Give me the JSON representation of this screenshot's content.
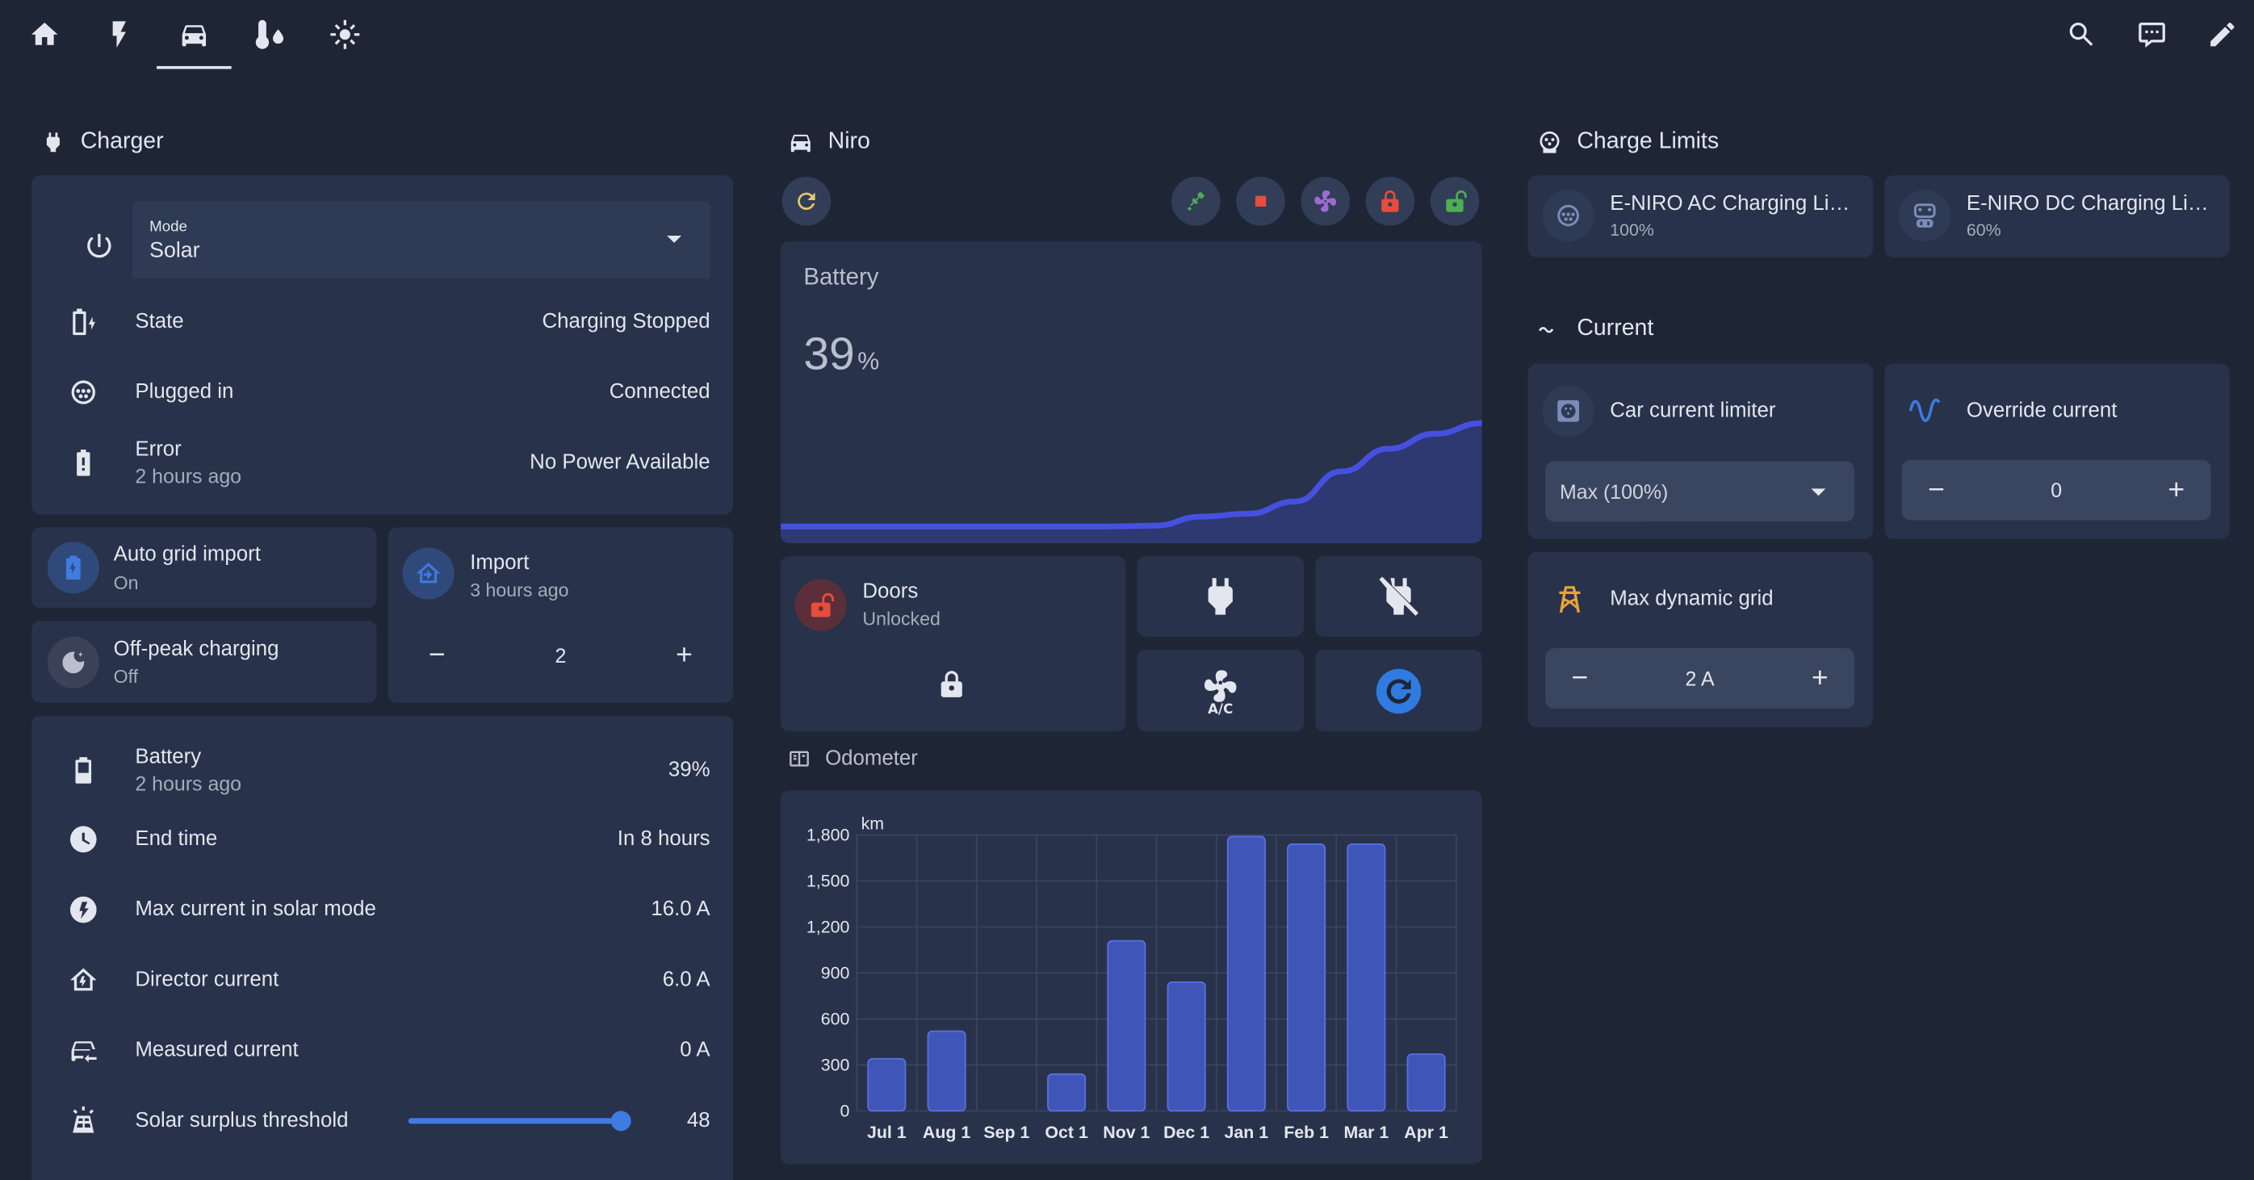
{
  "colors": {
    "bg": "#1e2636",
    "card": "#28324a",
    "accent": "#3f7be0",
    "bar": "#3f55b8",
    "battery_line": "#4650e0"
  },
  "nav": {
    "tabs": [
      {
        "name": "home-icon"
      },
      {
        "name": "lightning-icon"
      },
      {
        "name": "car-icon",
        "active": true
      },
      {
        "name": "thermometer-water-icon"
      },
      {
        "name": "sun-thermometer-icon"
      }
    ],
    "actions": [
      {
        "name": "search-icon"
      },
      {
        "name": "chat-icon"
      },
      {
        "name": "pencil-icon"
      }
    ]
  },
  "charger": {
    "title": "Charger",
    "mode": {
      "caption": "Mode",
      "value": "Solar"
    },
    "rows": [
      {
        "label": "State",
        "value": "Charging Stopped"
      },
      {
        "label": "Plugged in",
        "value": "Connected"
      },
      {
        "label": "Error",
        "sub": "2 hours ago",
        "value": "No Power Available"
      }
    ],
    "tiles": {
      "auto_grid": {
        "title": "Auto grid import",
        "state": "On"
      },
      "offpeak": {
        "title": "Off-peak charging",
        "state": "Off"
      },
      "import": {
        "title": "Import",
        "sub": "3 hours ago",
        "value": "2",
        "minus": "−",
        "plus": "+"
      }
    },
    "details": [
      {
        "label": "Battery",
        "sub": "2 hours ago",
        "value": "39%"
      },
      {
        "label": "End time",
        "value": "In 8 hours"
      },
      {
        "label": "Max current in solar mode",
        "value": "16.0 A"
      },
      {
        "label": "Director current",
        "value": "6.0 A"
      },
      {
        "label": "Measured current",
        "value": "0 A"
      },
      {
        "label": "Solar surplus threshold",
        "value": "48",
        "slider_fraction": 0.985
      }
    ]
  },
  "niro": {
    "title": "Niro",
    "battery": {
      "title": "Battery",
      "value": "39",
      "unit": "%",
      "trend": [
        0.035,
        0.035,
        0.035,
        0.035,
        0.035,
        0.035,
        0.035,
        0.035,
        0.04,
        0.1,
        0.12,
        0.2,
        0.4,
        0.55,
        0.65,
        0.72
      ]
    },
    "doors": {
      "title": "Doors",
      "state": "Unlocked"
    },
    "odometer": {
      "title": "Odometer",
      "chart_data": {
        "type": "bar",
        "ylabel": "km",
        "categories": [
          "Jul 1",
          "Aug 1",
          "Sep 1",
          "Oct 1",
          "Nov 1",
          "Dec 1",
          "Jan 1",
          "Feb 1",
          "Mar 1",
          "Apr 1"
        ],
        "values": [
          340,
          520,
          0,
          240,
          1110,
          840,
          1790,
          1740,
          1740,
          370
        ],
        "yticks": [
          "0",
          "300",
          "600",
          "900",
          "1,200",
          "1,500",
          "1,800"
        ],
        "ylim": [
          0,
          1800
        ]
      }
    }
  },
  "charge_limits": {
    "title": "Charge Limits",
    "items": [
      {
        "title": "E-NIRO AC Charging Li…",
        "value": "100%"
      },
      {
        "title": "E-NIRO DC Charging Li…",
        "value": "60%"
      }
    ]
  },
  "current": {
    "title": "Current",
    "car_limiter": {
      "title": "Car current limiter",
      "value": "Max (100%)"
    },
    "override": {
      "title": "Override current",
      "value": "0",
      "minus": "−",
      "plus": "+"
    },
    "max_dynamic": {
      "title": "Max dynamic grid",
      "value": "2 A",
      "minus": "−",
      "plus": "+"
    }
  }
}
